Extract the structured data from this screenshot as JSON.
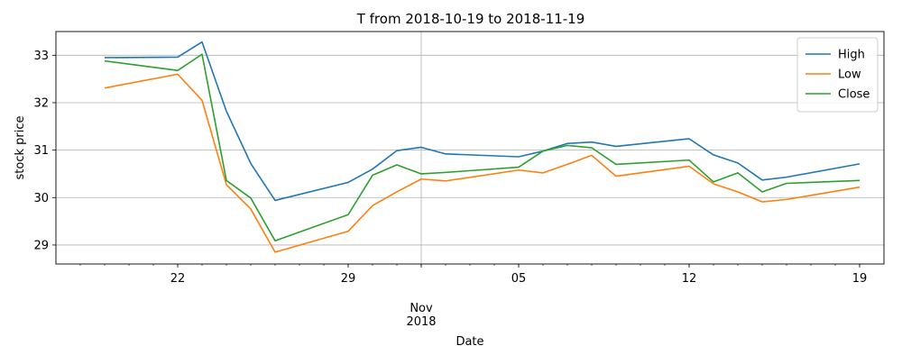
{
  "chart_data": {
    "type": "line",
    "title": "T from 2018-10-19 to 2018-11-19",
    "xlabel": "Date",
    "ylabel": "stock price",
    "x": [
      "2018-10-19",
      "2018-10-22",
      "2018-10-23",
      "2018-10-24",
      "2018-10-25",
      "2018-10-26",
      "2018-10-29",
      "2018-10-30",
      "2018-10-31",
      "2018-11-01",
      "2018-11-02",
      "2018-11-05",
      "2018-11-06",
      "2018-11-07",
      "2018-11-08",
      "2018-11-09",
      "2018-11-12",
      "2018-11-13",
      "2018-11-14",
      "2018-11-15",
      "2018-11-16",
      "2018-11-19"
    ],
    "series": [
      {
        "name": "High",
        "color": "#1f77b4",
        "values": [
          32.95,
          32.96,
          33.28,
          31.82,
          30.72,
          29.94,
          30.32,
          30.6,
          30.99,
          31.06,
          30.92,
          30.86,
          30.98,
          31.14,
          31.17,
          31.08,
          31.24,
          30.9,
          30.73,
          30.37,
          30.43,
          30.71
        ]
      },
      {
        "name": "Low",
        "color": "#ff7f0e",
        "values": [
          32.31,
          32.6,
          32.05,
          30.27,
          29.76,
          28.85,
          29.29,
          29.83,
          30.12,
          30.39,
          30.35,
          30.58,
          30.52,
          30.7,
          30.89,
          30.45,
          30.66,
          30.29,
          30.12,
          29.91,
          29.96,
          30.22
        ]
      },
      {
        "name": "Close",
        "color": "#2ca02c",
        "values": [
          32.88,
          32.68,
          33.02,
          30.36,
          29.99,
          29.09,
          29.64,
          30.47,
          30.69,
          30.5,
          30.53,
          30.64,
          30.98,
          31.1,
          31.05,
          30.7,
          30.79,
          30.33,
          30.52,
          30.12,
          30.3,
          30.36
        ]
      }
    ],
    "xlim": [
      "2018-10-17",
      "2018-11-20"
    ],
    "ylim": [
      28.6,
      33.5
    ],
    "yticks": [
      29,
      30,
      31,
      32,
      33
    ],
    "xticks": [
      {
        "date": "2018-10-22",
        "label": "22"
      },
      {
        "date": "2018-10-29",
        "label": "29"
      },
      {
        "date": "2018-11-05",
        "label": "05"
      },
      {
        "date": "2018-11-12",
        "label": "12"
      },
      {
        "date": "2018-11-19",
        "label": "19"
      }
    ],
    "month_label": {
      "date": "2018-11-01",
      "lines": [
        "Nov",
        "2018"
      ]
    },
    "grid": true,
    "legend_position": "top-right"
  }
}
